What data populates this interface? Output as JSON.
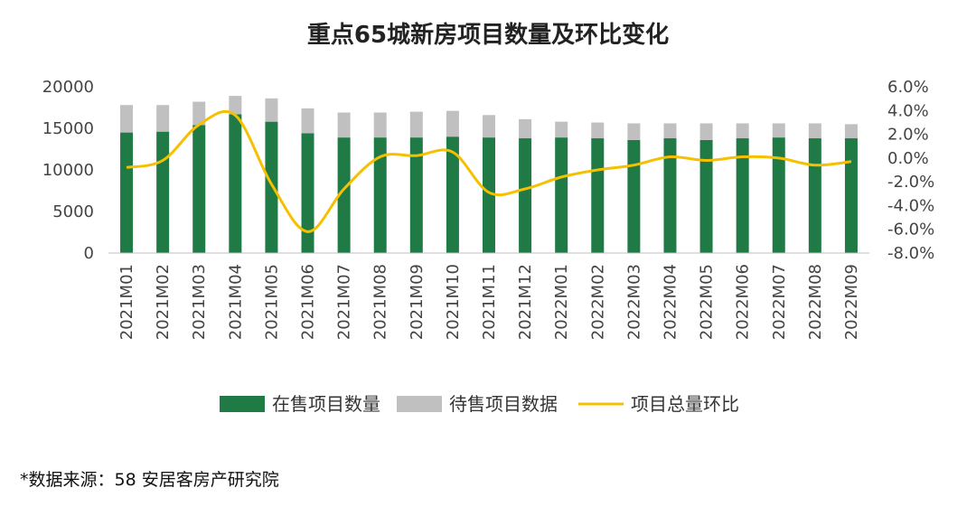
{
  "chart_data": {
    "type": "bar",
    "title": "重点65城新房项目数量及环比变化",
    "categories": [
      "2021M01",
      "2021M02",
      "2021M03",
      "2021M04",
      "2021M05",
      "2021M06",
      "2021M07",
      "2021M08",
      "2021M09",
      "2021M10",
      "2021M11",
      "2021M12",
      "2022M01",
      "2022M02",
      "2022M03",
      "2022M04",
      "2022M05",
      "2022M06",
      "2022M07",
      "2022M08",
      "2022M09"
    ],
    "series": [
      {
        "name": "在售项目数量",
        "kind": "bar-stack-bottom",
        "color": "#1f7a45",
        "values": [
          14500,
          14600,
          15400,
          16700,
          15800,
          14400,
          13900,
          13900,
          13900,
          14000,
          13900,
          13800,
          13900,
          13800,
          13600,
          13800,
          13600,
          13800,
          13900,
          13800,
          13800
        ]
      },
      {
        "name": "待售项目数据",
        "kind": "bar-stack-top",
        "color": "#c0c0c0",
        "values": [
          3300,
          3200,
          2800,
          2200,
          2800,
          3000,
          3000,
          3000,
          3100,
          3100,
          2700,
          2300,
          1900,
          1900,
          2000,
          1800,
          2000,
          1800,
          1700,
          1800,
          1700
        ]
      },
      {
        "name": "项目总量环比",
        "kind": "line",
        "axis": "right",
        "color": "#f5c000",
        "values": [
          -0.8,
          -0.2,
          2.8,
          3.6,
          -2.2,
          -6.2,
          -2.6,
          0.1,
          0.2,
          0.5,
          -2.9,
          -2.6,
          -1.6,
          -1.0,
          -0.6,
          0.1,
          -0.2,
          0.1,
          0.0,
          -0.6,
          -0.3
        ]
      }
    ],
    "y_left": {
      "min": 0,
      "max": 20000,
      "ticks": [
        "0",
        "5000",
        "10000",
        "15000",
        "20000"
      ]
    },
    "y_right": {
      "min": -8,
      "max": 6,
      "ticks": [
        "-8.0%",
        "-6.0%",
        "-4.0%",
        "-2.0%",
        "0.0%",
        "2.0%",
        "4.0%",
        "6.0%"
      ]
    },
    "legend": {
      "position": "bottom",
      "entries": [
        "在售项目数量",
        "待售项目数据",
        "项目总量环比"
      ]
    }
  },
  "source_note": "*数据来源：58 安居客房产研究院"
}
